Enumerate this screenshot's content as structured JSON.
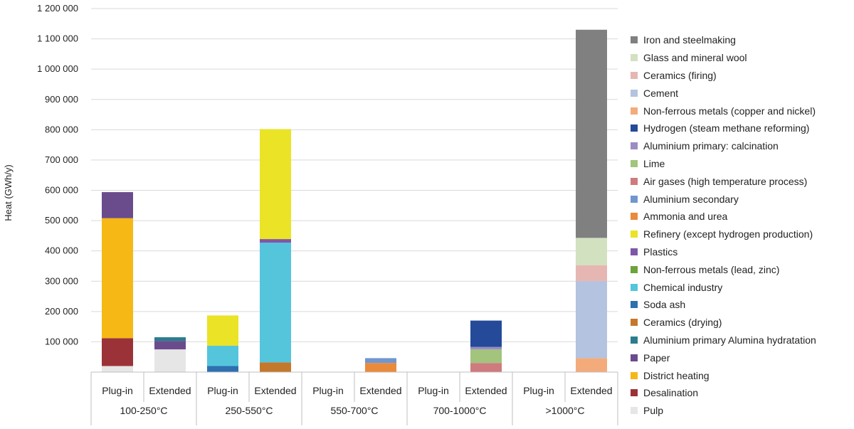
{
  "chart_data": {
    "type": "stacked-bar",
    "ylabel": "Heat (GWh/y)",
    "ylim": [
      0,
      1200000
    ],
    "yticks": [
      {
        "value": 100000,
        "label": "100 000"
      },
      {
        "value": 200000,
        "label": "200 000"
      },
      {
        "value": 300000,
        "label": "300 000"
      },
      {
        "value": 400000,
        "label": "400 000"
      },
      {
        "value": 500000,
        "label": "500 000"
      },
      {
        "value": 600000,
        "label": "600 000"
      },
      {
        "value": 700000,
        "label": "700 000"
      },
      {
        "value": 800000,
        "label": "800 000"
      },
      {
        "value": 900000,
        "label": "900 000"
      },
      {
        "value": 1000000,
        "label": "1 000 000"
      },
      {
        "value": 1100000,
        "label": "1 100 000"
      },
      {
        "value": 1200000,
        "label": "1 200 000"
      }
    ],
    "grid": true,
    "legend_position": "right",
    "groups": [
      "100-250°C",
      "250-550°C",
      "550-700°C",
      "700-1000°C",
      ">1000°C"
    ],
    "subcategories": [
      "Plug-in",
      "Extended"
    ],
    "series": [
      {
        "name": "Pulp",
        "color": "#e6e6e6",
        "values": [
          20000,
          75000,
          0,
          0,
          0,
          0,
          0,
          0,
          0,
          0
        ]
      },
      {
        "name": "Desalination",
        "color": "#9b3237",
        "values": [
          92000,
          0,
          0,
          0,
          0,
          0,
          0,
          0,
          0,
          0
        ]
      },
      {
        "name": "District heating",
        "color": "#f5b815",
        "values": [
          396000,
          0,
          0,
          0,
          0,
          0,
          0,
          0,
          0,
          0
        ]
      },
      {
        "name": "Paper",
        "color": "#6a4c8c",
        "values": [
          86000,
          28000,
          0,
          0,
          0,
          0,
          0,
          0,
          0,
          0
        ]
      },
      {
        "name": "Aluminium primary Alumina hydratation",
        "color": "#2a7d8e",
        "values": [
          0,
          12000,
          0,
          0,
          0,
          0,
          0,
          0,
          0,
          0
        ]
      },
      {
        "name": "Ceramics (drying)",
        "color": "#c3782b",
        "values": [
          0,
          0,
          0,
          32000,
          0,
          0,
          0,
          0,
          0,
          0
        ]
      },
      {
        "name": "Soda ash",
        "color": "#2e6fb0",
        "values": [
          0,
          0,
          20000,
          0,
          0,
          0,
          0,
          0,
          0,
          0
        ]
      },
      {
        "name": "Chemical industry",
        "color": "#55c5dc",
        "values": [
          0,
          0,
          67000,
          395000,
          0,
          0,
          0,
          0,
          0,
          0
        ]
      },
      {
        "name": "Non-ferrous metals (lead, zinc)",
        "color": "#6da33a",
        "values": [
          0,
          0,
          0,
          0,
          0,
          0,
          0,
          0,
          0,
          0
        ]
      },
      {
        "name": "Plastics",
        "color": "#7e57a8",
        "values": [
          0,
          0,
          0,
          12000,
          0,
          0,
          0,
          0,
          0,
          0
        ]
      },
      {
        "name": "Refinery (except hydrogen production)",
        "color": "#eae326",
        "values": [
          0,
          0,
          100000,
          363000,
          0,
          0,
          0,
          0,
          0,
          0
        ]
      },
      {
        "name": "Ammonia and urea",
        "color": "#ea8a3b",
        "values": [
          0,
          0,
          0,
          0,
          0,
          30000,
          0,
          0,
          0,
          0
        ]
      },
      {
        "name": "Aluminium secondary",
        "color": "#7096cf",
        "values": [
          0,
          0,
          0,
          0,
          0,
          16000,
          0,
          0,
          0,
          0
        ]
      },
      {
        "name": "Air gases (high temperature process)",
        "color": "#cf7a7e",
        "values": [
          0,
          0,
          0,
          0,
          0,
          0,
          0,
          30000,
          0,
          0
        ]
      },
      {
        "name": "Lime",
        "color": "#a2c47c",
        "values": [
          0,
          0,
          0,
          0,
          0,
          0,
          0,
          45000,
          0,
          0
        ]
      },
      {
        "name": "Aluminium primary: calcination",
        "color": "#9b8cc4",
        "values": [
          0,
          0,
          0,
          0,
          0,
          0,
          0,
          8000,
          0,
          0
        ]
      },
      {
        "name": "Hydrogen (steam methane reforming)",
        "color": "#244a99",
        "values": [
          0,
          0,
          0,
          0,
          0,
          0,
          0,
          87000,
          0,
          0
        ]
      },
      {
        "name": "Non-ferrous metals (copper and nickel)",
        "color": "#f4ab7c",
        "values": [
          0,
          0,
          0,
          0,
          0,
          0,
          0,
          0,
          0,
          46000
        ]
      },
      {
        "name": "Cement",
        "color": "#b3c3e0",
        "values": [
          0,
          0,
          0,
          0,
          0,
          0,
          0,
          0,
          0,
          254000
        ]
      },
      {
        "name": "Ceramics (firing)",
        "color": "#e6b7b2",
        "values": [
          0,
          0,
          0,
          0,
          0,
          0,
          0,
          0,
          0,
          53000
        ]
      },
      {
        "name": "Glass and mineral wool",
        "color": "#d2e1c0",
        "values": [
          0,
          0,
          0,
          0,
          0,
          0,
          0,
          0,
          0,
          90000
        ]
      },
      {
        "name": "Iron and steelmaking",
        "color": "#808080",
        "values": [
          0,
          0,
          0,
          0,
          0,
          0,
          0,
          0,
          0,
          687000
        ]
      }
    ]
  }
}
